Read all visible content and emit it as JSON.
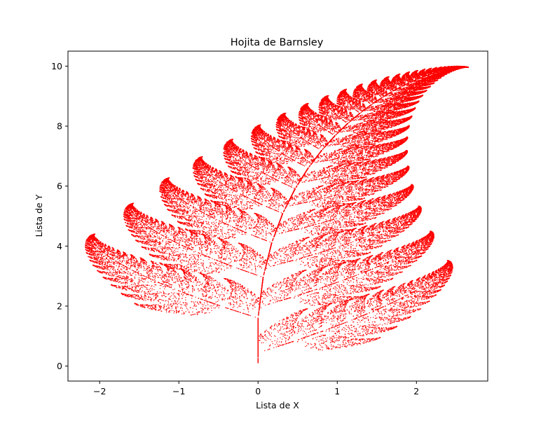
{
  "chart_data": {
    "type": "scatter",
    "title": "Hojita de Barnsley",
    "xlabel": "Lista de X",
    "ylabel": "Lista de Y",
    "xlim": [
      -2.4,
      2.9
    ],
    "ylim": [
      -0.5,
      10.5
    ],
    "xticks": [
      -2,
      -1,
      0,
      1,
      2
    ],
    "yticks": [
      0,
      2,
      4,
      6,
      8,
      10
    ],
    "x_tick_labels": [
      "−2",
      "−1",
      "0",
      "1",
      "2"
    ],
    "y_tick_labels": [
      "0",
      "2",
      "4",
      "6",
      "8",
      "10"
    ],
    "grid": false,
    "legend": false,
    "series": [
      {
        "marker_color": "#ff0000",
        "generator": {
          "kind": "barnsley-fern-ifs",
          "points": 60000,
          "start": [
            0,
            0
          ],
          "transforms": [
            {
              "a": 0,
              "b": 0,
              "c": 0,
              "d": 0.16,
              "e": 0,
              "f": 0,
              "p": 0.01
            },
            {
              "a": 0.85,
              "b": 0.04,
              "c": -0.04,
              "d": 0.85,
              "e": 0,
              "f": 1.6,
              "p": 0.85
            },
            {
              "a": 0.2,
              "b": -0.26,
              "c": 0.23,
              "d": 0.22,
              "e": 0,
              "f": 1.6,
              "p": 0.07
            },
            {
              "a": -0.15,
              "b": 0.28,
              "c": 0.26,
              "d": 0.24,
              "e": 0,
              "f": 0.44,
              "p": 0.07
            }
          ]
        }
      }
    ]
  }
}
